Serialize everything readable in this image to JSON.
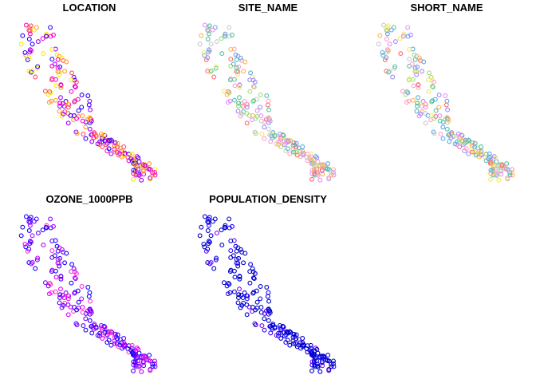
{
  "chart_data": {
    "type": "scatter",
    "description_free": true,
    "grid": false,
    "legend": "none",
    "marker": "open-circle",
    "panels": [
      {
        "title": "LOCATION",
        "palette": [
          "#2600ff",
          "#9b00ff",
          "#ff00cf",
          "#ff4b6a",
          "#ff9a2e",
          "#ffe600"
        ]
      },
      {
        "title": "SITE_NAME",
        "palette": [
          "#ff6b6b",
          "#ffb347",
          "#f5e663",
          "#9be07a",
          "#4fc3a1",
          "#5aa9e6",
          "#9b8cff",
          "#e58cff",
          "#ff9ec7",
          "#c9c9c9"
        ]
      },
      {
        "title": "SHORT_NAME",
        "palette": [
          "#ff6b6b",
          "#ffb347",
          "#f5e663",
          "#9be07a",
          "#4fc3a1",
          "#5aa9e6",
          "#9b8cff",
          "#e58cff",
          "#ff9ec7",
          "#c9c9c9"
        ]
      },
      {
        "title": "OZONE_1000PPB",
        "palette": [
          "#1a00ff",
          "#4d00ff",
          "#8000ff",
          "#b300ff",
          "#e600ff",
          "#ff33cc"
        ]
      },
      {
        "title": "POPULATION_DENSITY",
        "palette": [
          "#0000cc",
          "#0000cc",
          "#0000dd",
          "#1a00ff",
          "#3300ff",
          "#8000ff"
        ]
      }
    ]
  }
}
